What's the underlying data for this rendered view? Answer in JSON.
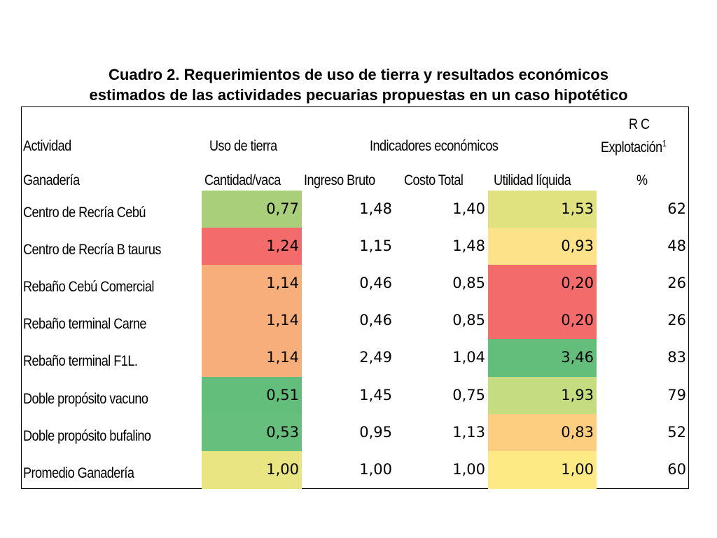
{
  "title": {
    "line1": "Cuadro 2.  Requerimientos de uso de tierra y resultados económicos",
    "line2": "estimados de las actividades pecuarias propuestas en un caso hipotético"
  },
  "headers": {
    "actividad": "Actividad",
    "uso_tierra": "Uso de tierra",
    "indicadores": "Indicadores económicos",
    "rc_line1": "R C",
    "rc_line2": "Explotación",
    "rc_sup": "1",
    "ganaderia": "Ganadería",
    "cantidad": "Cantidad/vaca",
    "ingreso": "Ingreso Bruto",
    "costo": "Costo Total",
    "utilidad": "Utilidad líquida",
    "pct": "%"
  },
  "rows": [
    {
      "actividad": "Centro de Recría Cebú",
      "cantidad": "0,77",
      "ingreso": "1,48",
      "costo": "1,40",
      "utilidad": "1,53",
      "rc": "62",
      "cantidad_color": "#a9cf7a",
      "utilidad_color": "#dfe27f"
    },
    {
      "actividad": "Centro de Recría B taurus",
      "cantidad": "1,24",
      "ingreso": "1,15",
      "costo": "1,48",
      "utilidad": "0,93",
      "rc": "48",
      "cantidad_color": "#f36b6b",
      "utilidad_color": "#fde28a"
    },
    {
      "actividad": "Rebaño Cebú Comercial",
      "cantidad": "1,14",
      "ingreso": "0,46",
      "costo": "0,85",
      "utilidad": "0,20",
      "rc": "26",
      "cantidad_color": "#f8ae7b",
      "utilidad_color": "#f36b6b"
    },
    {
      "actividad": "Rebaño terminal Carne",
      "cantidad": "1,14",
      "ingreso": "0,46",
      "costo": "0,85",
      "utilidad": "0,20",
      "rc": "26",
      "cantidad_color": "#f8ae7b",
      "utilidad_color": "#f36b6b"
    },
    {
      "actividad": "Rebaño terminal F1L.",
      "cantidad": "1,14",
      "ingreso": "2,49",
      "costo": "1,04",
      "utilidad": "3,46",
      "rc": "83",
      "cantidad_color": "#f8ae7b",
      "utilidad_color": "#63be7b"
    },
    {
      "actividad": "Doble propósito vacuno",
      "cantidad": "0,51",
      "ingreso": "1,45",
      "costo": "0,75",
      "utilidad": "1,93",
      "rc": "79",
      "cantidad_color": "#63be7b",
      "utilidad_color": "#c5dd80"
    },
    {
      "actividad": "Doble propósito bufalino",
      "cantidad": "0,53",
      "ingreso": "0,95",
      "costo": "1,13",
      "utilidad": "0,83",
      "rc": "52",
      "cantidad_color": "#66bf7c",
      "utilidad_color": "#fdce80"
    },
    {
      "actividad": "Promedio Ganadería",
      "cantidad": "1,00",
      "ingreso": "1,00",
      "costo": "1,00",
      "utilidad": "1,00",
      "rc": "60",
      "cantidad_color": "#e8e582",
      "utilidad_color": "#fdea84"
    }
  ]
}
